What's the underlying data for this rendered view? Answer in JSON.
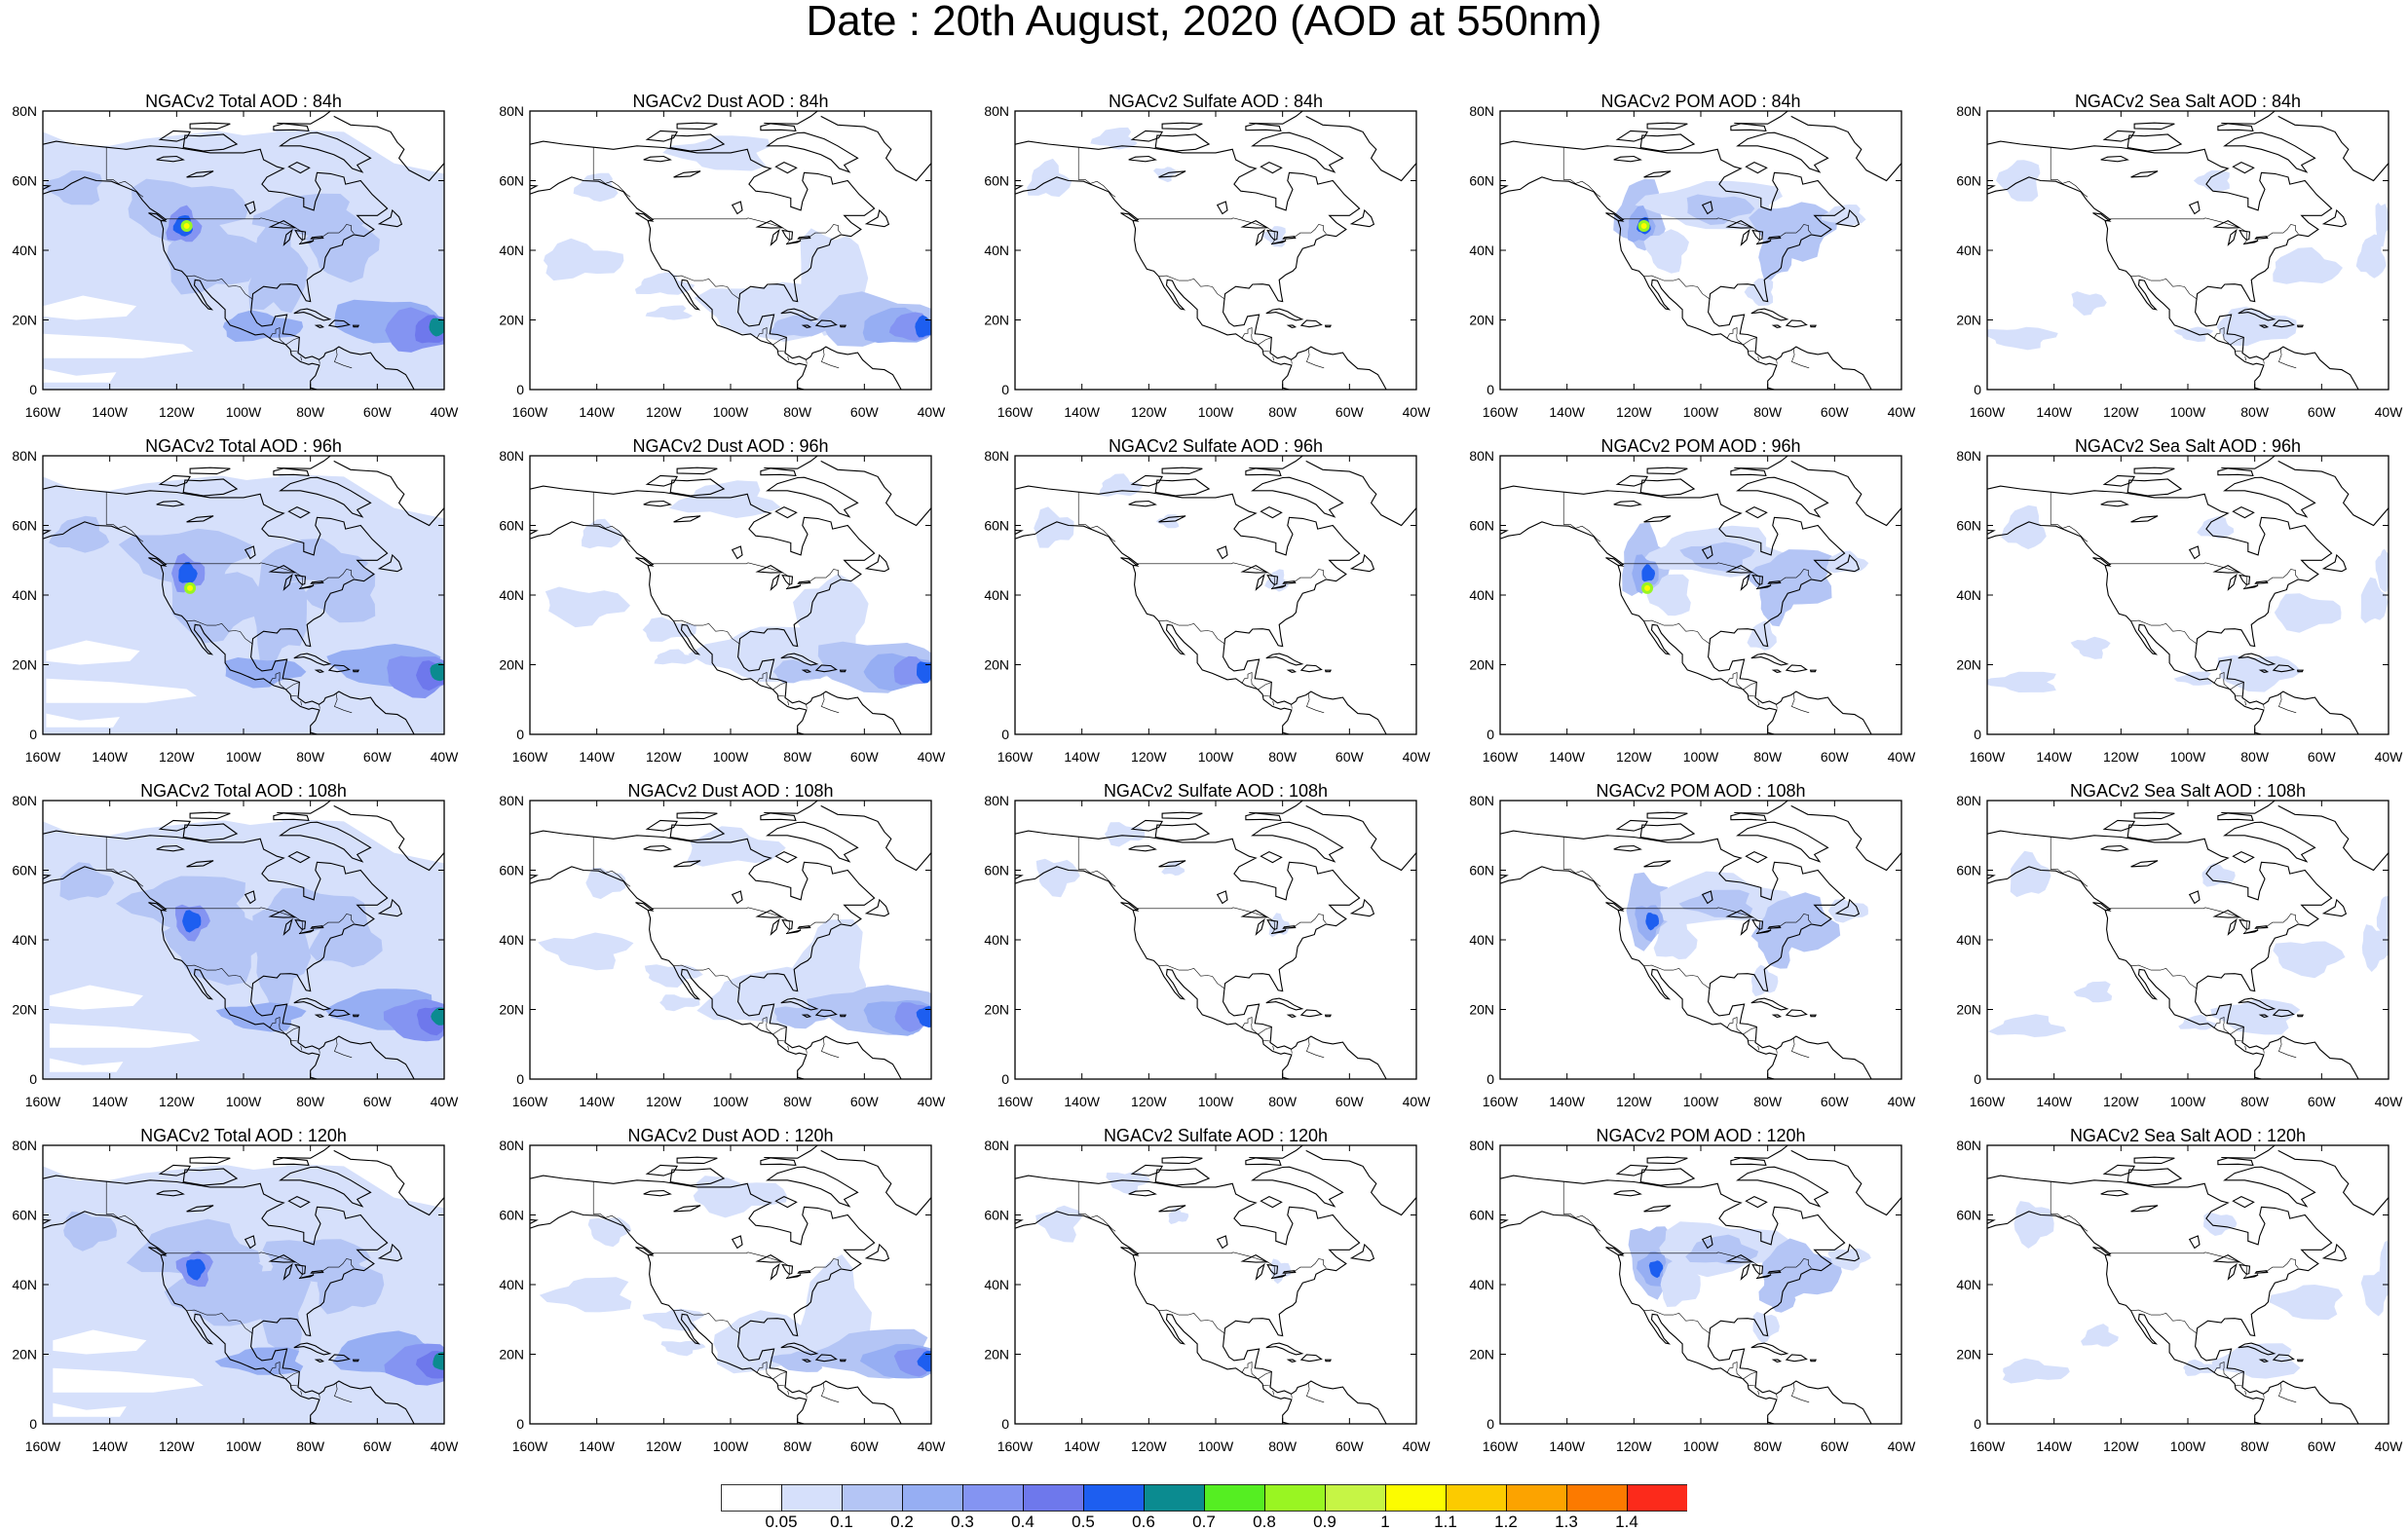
{
  "title": "Date : 20th August, 2020 (AOD at 550nm)",
  "axes": {
    "lat_ticks": [
      "80N",
      "60N",
      "40N",
      "20N",
      "0"
    ],
    "lon_ticks_a": [
      "160W",
      "140W",
      "120W",
      "100W",
      "80W",
      "60W",
      "40W"
    ],
    "lon_ticks_b": [
      "160W",
      "140W",
      "120W",
      "100W",
      "80W",
      "60W",
      "40W"
    ]
  },
  "panels": [
    {
      "title": "NGACv2 Total AOD : 84h",
      "species": "total",
      "hour": 84
    },
    {
      "title": "NGACv2 Dust AOD : 84h",
      "species": "dust",
      "hour": 84
    },
    {
      "title": "NGACv2 Sulfate AOD : 84h",
      "species": "sulfate",
      "hour": 84
    },
    {
      "title": "NGACv2 POM AOD : 84h",
      "species": "pom",
      "hour": 84
    },
    {
      "title": "NGACv2 Sea Salt AOD : 84h",
      "species": "seasalt",
      "hour": 84
    },
    {
      "title": "NGACv2 Total AOD : 96h",
      "species": "total",
      "hour": 96
    },
    {
      "title": "NGACv2 Dust AOD : 96h",
      "species": "dust",
      "hour": 96
    },
    {
      "title": "NGACv2 Sulfate AOD : 96h",
      "species": "sulfate",
      "hour": 96
    },
    {
      "title": "NGACv2 POM AOD : 96h",
      "species": "pom",
      "hour": 96
    },
    {
      "title": "NGACv2 Sea Salt AOD : 96h",
      "species": "seasalt",
      "hour": 96
    },
    {
      "title": "NGACv2 Total AOD : 108h",
      "species": "total",
      "hour": 108
    },
    {
      "title": "NGACv2 Dust AOD : 108h",
      "species": "dust",
      "hour": 108
    },
    {
      "title": "NGACv2 Sulfate AOD : 108h",
      "species": "sulfate",
      "hour": 108
    },
    {
      "title": "NGACv2 POM AOD : 108h",
      "species": "pom",
      "hour": 108
    },
    {
      "title": "NGACv2 Sea Salt AOD : 108h",
      "species": "seasalt",
      "hour": 108
    },
    {
      "title": "NGACv2 Total AOD : 120h",
      "species": "total",
      "hour": 120
    },
    {
      "title": "NGACv2 Dust AOD : 120h",
      "species": "dust",
      "hour": 120
    },
    {
      "title": "NGACv2 Sulfate AOD : 120h",
      "species": "sulfate",
      "hour": 120
    },
    {
      "title": "NGACv2 POM AOD : 120h",
      "species": "pom",
      "hour": 120
    },
    {
      "title": "NGACv2 Sea Salt  AOD : 120h",
      "species": "seasalt",
      "hour": 120
    }
  ],
  "colorbar": {
    "labels": [
      "0.05",
      "0.1",
      "0.2",
      "0.3",
      "0.4",
      "0.5",
      "0.6",
      "0.7",
      "0.8",
      "0.9",
      "1",
      "1.1",
      "1.2",
      "1.3",
      "1.4"
    ],
    "colors": [
      "#ffffff",
      "#d6e0fb",
      "#b4c5f5",
      "#96aef3",
      "#8494f2",
      "#6e78ec",
      "#1d5ef0",
      "#0b8b90",
      "#55ee22",
      "#99f522",
      "#c6f545",
      "#fcfc00",
      "#fccb00",
      "#fca300",
      "#fc7a00",
      "#fc2a1b"
    ]
  }
}
